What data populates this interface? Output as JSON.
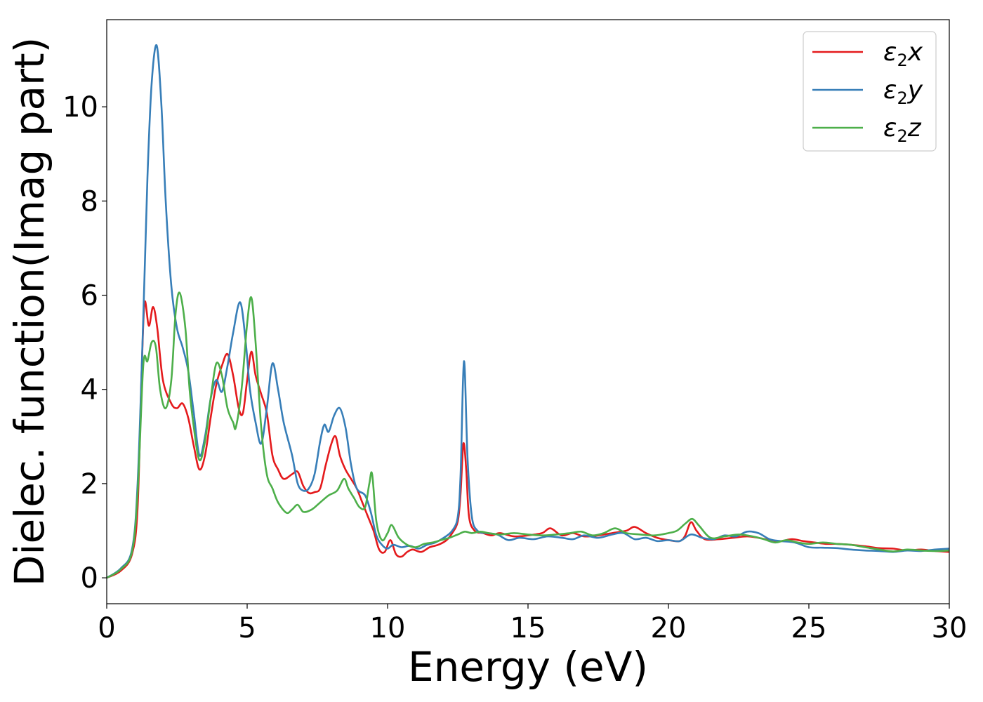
{
  "chart_data": {
    "type": "line",
    "title": "",
    "xlabel": "Energy (eV)",
    "ylabel": "Dielec. function(Imag part)",
    "xlim": [
      0,
      30
    ],
    "ylim": [
      -0.55,
      11.85
    ],
    "xticks": [
      0,
      5,
      10,
      15,
      20,
      25,
      30
    ],
    "xtick_labels": [
      "0",
      "5",
      "10",
      "15",
      "20",
      "25",
      "30"
    ],
    "yticks": [
      0,
      2,
      4,
      6,
      8,
      10
    ],
    "ytick_labels": [
      "0",
      "2",
      "4",
      "6",
      "8",
      "10"
    ],
    "grid": false,
    "legend_position": "top-right",
    "series": [
      {
        "name": "ε2x",
        "legend": {
          "base": "ε",
          "sub": "2",
          "letter": "x"
        },
        "color": "#e41a1c",
        "points": [
          [
            0,
            0
          ],
          [
            0.5,
            0.15
          ],
          [
            0.9,
            0.5
          ],
          [
            1.1,
            1.5
          ],
          [
            1.25,
            4.5
          ],
          [
            1.35,
            5.85
          ],
          [
            1.5,
            5.35
          ],
          [
            1.65,
            5.75
          ],
          [
            1.8,
            5.3
          ],
          [
            2.0,
            4.2
          ],
          [
            2.3,
            3.7
          ],
          [
            2.5,
            3.6
          ],
          [
            2.7,
            3.7
          ],
          [
            2.9,
            3.4
          ],
          [
            3.1,
            2.8
          ],
          [
            3.3,
            2.3
          ],
          [
            3.5,
            2.6
          ],
          [
            3.7,
            3.4
          ],
          [
            3.9,
            4.1
          ],
          [
            4.1,
            4.5
          ],
          [
            4.3,
            4.75
          ],
          [
            4.5,
            4.3
          ],
          [
            4.7,
            3.6
          ],
          [
            4.85,
            3.5
          ],
          [
            5.0,
            4.2
          ],
          [
            5.15,
            4.8
          ],
          [
            5.3,
            4.3
          ],
          [
            5.5,
            3.9
          ],
          [
            5.7,
            3.5
          ],
          [
            5.9,
            2.6
          ],
          [
            6.1,
            2.3
          ],
          [
            6.3,
            2.1
          ],
          [
            6.6,
            2.2
          ],
          [
            6.8,
            2.25
          ],
          [
            7.0,
            1.95
          ],
          [
            7.2,
            1.8
          ],
          [
            7.4,
            1.82
          ],
          [
            7.6,
            1.9
          ],
          [
            7.8,
            2.4
          ],
          [
            8.0,
            2.85
          ],
          [
            8.15,
            3.0
          ],
          [
            8.3,
            2.6
          ],
          [
            8.5,
            2.3
          ],
          [
            8.7,
            2.1
          ],
          [
            8.9,
            1.9
          ],
          [
            9.1,
            1.6
          ],
          [
            9.3,
            1.3
          ],
          [
            9.5,
            1.0
          ],
          [
            9.7,
            0.6
          ],
          [
            9.9,
            0.55
          ],
          [
            10.1,
            0.8
          ],
          [
            10.3,
            0.5
          ],
          [
            10.5,
            0.45
          ],
          [
            10.7,
            0.55
          ],
          [
            10.9,
            0.6
          ],
          [
            11.2,
            0.55
          ],
          [
            11.5,
            0.65
          ],
          [
            11.8,
            0.7
          ],
          [
            12.1,
            0.8
          ],
          [
            12.3,
            0.95
          ],
          [
            12.5,
            1.2
          ],
          [
            12.6,
            1.8
          ],
          [
            12.7,
            2.85
          ],
          [
            12.8,
            2.3
          ],
          [
            12.9,
            1.3
          ],
          [
            13.1,
            1.0
          ],
          [
            13.4,
            0.95
          ],
          [
            13.7,
            0.9
          ],
          [
            14.0,
            0.95
          ],
          [
            14.5,
            0.88
          ],
          [
            15.0,
            0.9
          ],
          [
            15.5,
            0.95
          ],
          [
            15.8,
            1.05
          ],
          [
            16.2,
            0.9
          ],
          [
            16.6,
            0.95
          ],
          [
            17.0,
            0.88
          ],
          [
            17.5,
            0.9
          ],
          [
            18.0,
            0.95
          ],
          [
            18.5,
            1.0
          ],
          [
            18.8,
            1.08
          ],
          [
            19.2,
            0.95
          ],
          [
            19.6,
            0.85
          ],
          [
            20.0,
            0.8
          ],
          [
            20.4,
            0.78
          ],
          [
            20.6,
            0.9
          ],
          [
            20.8,
            1.18
          ],
          [
            21.0,
            1.0
          ],
          [
            21.3,
            0.82
          ],
          [
            21.8,
            0.82
          ],
          [
            22.3,
            0.85
          ],
          [
            22.8,
            0.88
          ],
          [
            23.2,
            0.85
          ],
          [
            23.6,
            0.8
          ],
          [
            24.0,
            0.78
          ],
          [
            24.4,
            0.82
          ],
          [
            24.8,
            0.78
          ],
          [
            25.2,
            0.75
          ],
          [
            25.6,
            0.72
          ],
          [
            26.0,
            0.72
          ],
          [
            26.5,
            0.7
          ],
          [
            27.0,
            0.67
          ],
          [
            27.5,
            0.63
          ],
          [
            28.0,
            0.62
          ],
          [
            28.5,
            0.58
          ],
          [
            29.0,
            0.6
          ],
          [
            29.5,
            0.57
          ],
          [
            30.0,
            0.55
          ]
        ]
      },
      {
        "name": "ε2y",
        "legend": {
          "base": "ε",
          "sub": "2",
          "letter": "y"
        },
        "color": "#377eb8",
        "points": [
          [
            0,
            0
          ],
          [
            0.5,
            0.2
          ],
          [
            0.9,
            0.6
          ],
          [
            1.1,
            2.0
          ],
          [
            1.3,
            5.5
          ],
          [
            1.45,
            8.5
          ],
          [
            1.6,
            10.5
          ],
          [
            1.78,
            11.3
          ],
          [
            1.95,
            10.0
          ],
          [
            2.1,
            8.0
          ],
          [
            2.3,
            6.2
          ],
          [
            2.5,
            5.3
          ],
          [
            2.7,
            4.9
          ],
          [
            2.9,
            4.4
          ],
          [
            3.1,
            3.5
          ],
          [
            3.3,
            2.6
          ],
          [
            3.5,
            3.0
          ],
          [
            3.7,
            3.8
          ],
          [
            3.9,
            4.2
          ],
          [
            4.1,
            3.95
          ],
          [
            4.3,
            4.5
          ],
          [
            4.5,
            5.2
          ],
          [
            4.75,
            5.85
          ],
          [
            4.95,
            5.0
          ],
          [
            5.1,
            4.0
          ],
          [
            5.3,
            3.3
          ],
          [
            5.5,
            2.85
          ],
          [
            5.7,
            3.6
          ],
          [
            5.9,
            4.55
          ],
          [
            6.1,
            4.0
          ],
          [
            6.3,
            3.3
          ],
          [
            6.6,
            2.6
          ],
          [
            6.8,
            2.0
          ],
          [
            7.0,
            1.85
          ],
          [
            7.2,
            1.9
          ],
          [
            7.4,
            2.2
          ],
          [
            7.6,
            2.9
          ],
          [
            7.75,
            3.25
          ],
          [
            7.9,
            3.1
          ],
          [
            8.1,
            3.45
          ],
          [
            8.3,
            3.6
          ],
          [
            8.5,
            3.2
          ],
          [
            8.7,
            2.4
          ],
          [
            8.9,
            1.9
          ],
          [
            9.2,
            1.75
          ],
          [
            9.4,
            1.4
          ],
          [
            9.6,
            0.9
          ],
          [
            9.8,
            0.7
          ],
          [
            10.0,
            0.62
          ],
          [
            10.2,
            0.7
          ],
          [
            10.5,
            0.65
          ],
          [
            10.8,
            0.68
          ],
          [
            11.1,
            0.62
          ],
          [
            11.4,
            0.7
          ],
          [
            11.7,
            0.75
          ],
          [
            12.0,
            0.85
          ],
          [
            12.3,
            1.0
          ],
          [
            12.5,
            1.3
          ],
          [
            12.6,
            2.2
          ],
          [
            12.72,
            4.6
          ],
          [
            12.85,
            2.5
          ],
          [
            13.0,
            1.3
          ],
          [
            13.2,
            1.0
          ],
          [
            13.5,
            0.95
          ],
          [
            13.9,
            0.92
          ],
          [
            14.3,
            0.8
          ],
          [
            14.7,
            0.85
          ],
          [
            15.2,
            0.82
          ],
          [
            15.7,
            0.88
          ],
          [
            16.2,
            0.85
          ],
          [
            16.6,
            0.82
          ],
          [
            17.0,
            0.9
          ],
          [
            17.5,
            0.85
          ],
          [
            18.0,
            0.92
          ],
          [
            18.4,
            0.95
          ],
          [
            18.8,
            0.82
          ],
          [
            19.2,
            0.85
          ],
          [
            19.6,
            0.78
          ],
          [
            20.0,
            0.8
          ],
          [
            20.4,
            0.78
          ],
          [
            20.8,
            0.92
          ],
          [
            21.2,
            0.85
          ],
          [
            21.6,
            0.82
          ],
          [
            22.0,
            0.9
          ],
          [
            22.4,
            0.88
          ],
          [
            22.8,
            0.98
          ],
          [
            23.2,
            0.95
          ],
          [
            23.6,
            0.82
          ],
          [
            24.0,
            0.78
          ],
          [
            24.5,
            0.75
          ],
          [
            25.0,
            0.65
          ],
          [
            25.5,
            0.64
          ],
          [
            26.0,
            0.63
          ],
          [
            26.5,
            0.6
          ],
          [
            27.0,
            0.58
          ],
          [
            27.5,
            0.57
          ],
          [
            28.0,
            0.55
          ],
          [
            28.5,
            0.58
          ],
          [
            29.0,
            0.57
          ],
          [
            29.5,
            0.6
          ],
          [
            30.0,
            0.62
          ]
        ]
      },
      {
        "name": "ε2z",
        "legend": {
          "base": "ε",
          "sub": "2",
          "letter": "z"
        },
        "color": "#4daf4a",
        "points": [
          [
            0,
            0
          ],
          [
            0.5,
            0.18
          ],
          [
            0.9,
            0.55
          ],
          [
            1.1,
            1.8
          ],
          [
            1.3,
            4.5
          ],
          [
            1.45,
            4.6
          ],
          [
            1.6,
            5.0
          ],
          [
            1.75,
            4.9
          ],
          [
            1.9,
            4.0
          ],
          [
            2.1,
            3.6
          ],
          [
            2.3,
            4.2
          ],
          [
            2.45,
            5.6
          ],
          [
            2.6,
            6.05
          ],
          [
            2.8,
            5.3
          ],
          [
            2.95,
            4.0
          ],
          [
            3.1,
            3.2
          ],
          [
            3.3,
            2.5
          ],
          [
            3.5,
            2.9
          ],
          [
            3.7,
            3.8
          ],
          [
            3.9,
            4.55
          ],
          [
            4.1,
            4.3
          ],
          [
            4.3,
            3.6
          ],
          [
            4.5,
            3.3
          ],
          [
            4.6,
            3.2
          ],
          [
            4.8,
            4.0
          ],
          [
            5.0,
            5.4
          ],
          [
            5.15,
            5.95
          ],
          [
            5.3,
            5.0
          ],
          [
            5.5,
            3.2
          ],
          [
            5.7,
            2.2
          ],
          [
            5.9,
            1.9
          ],
          [
            6.1,
            1.6
          ],
          [
            6.4,
            1.38
          ],
          [
            6.6,
            1.45
          ],
          [
            6.8,
            1.55
          ],
          [
            7.0,
            1.4
          ],
          [
            7.3,
            1.45
          ],
          [
            7.6,
            1.6
          ],
          [
            7.9,
            1.75
          ],
          [
            8.2,
            1.85
          ],
          [
            8.45,
            2.1
          ],
          [
            8.6,
            1.9
          ],
          [
            8.8,
            1.7
          ],
          [
            9.0,
            1.5
          ],
          [
            9.2,
            1.5
          ],
          [
            9.35,
            2.0
          ],
          [
            9.45,
            2.2
          ],
          [
            9.6,
            1.2
          ],
          [
            9.8,
            0.8
          ],
          [
            10.0,
            0.95
          ],
          [
            10.15,
            1.12
          ],
          [
            10.4,
            0.85
          ],
          [
            10.7,
            0.7
          ],
          [
            11.0,
            0.65
          ],
          [
            11.3,
            0.72
          ],
          [
            11.6,
            0.75
          ],
          [
            11.9,
            0.8
          ],
          [
            12.2,
            0.85
          ],
          [
            12.5,
            0.92
          ],
          [
            12.75,
            0.98
          ],
          [
            13.0,
            0.95
          ],
          [
            13.3,
            0.98
          ],
          [
            13.6,
            0.95
          ],
          [
            14.0,
            0.92
          ],
          [
            14.5,
            0.95
          ],
          [
            15.0,
            0.92
          ],
          [
            15.5,
            0.9
          ],
          [
            16.0,
            0.92
          ],
          [
            16.5,
            0.95
          ],
          [
            16.9,
            0.98
          ],
          [
            17.3,
            0.9
          ],
          [
            17.7,
            0.95
          ],
          [
            18.1,
            1.05
          ],
          [
            18.5,
            0.95
          ],
          [
            19.0,
            0.92
          ],
          [
            19.5,
            0.9
          ],
          [
            20.0,
            0.95
          ],
          [
            20.3,
            1.0
          ],
          [
            20.6,
            1.15
          ],
          [
            20.85,
            1.25
          ],
          [
            21.1,
            1.1
          ],
          [
            21.5,
            0.85
          ],
          [
            22.0,
            0.88
          ],
          [
            22.5,
            0.92
          ],
          [
            23.0,
            0.88
          ],
          [
            23.4,
            0.82
          ],
          [
            23.8,
            0.75
          ],
          [
            24.2,
            0.8
          ],
          [
            24.6,
            0.75
          ],
          [
            25.0,
            0.72
          ],
          [
            25.5,
            0.75
          ],
          [
            26.0,
            0.72
          ],
          [
            26.5,
            0.7
          ],
          [
            27.0,
            0.65
          ],
          [
            27.5,
            0.6
          ],
          [
            28.0,
            0.56
          ],
          [
            28.5,
            0.6
          ],
          [
            29.0,
            0.58
          ],
          [
            29.5,
            0.57
          ],
          [
            30.0,
            0.58
          ]
        ]
      }
    ]
  }
}
